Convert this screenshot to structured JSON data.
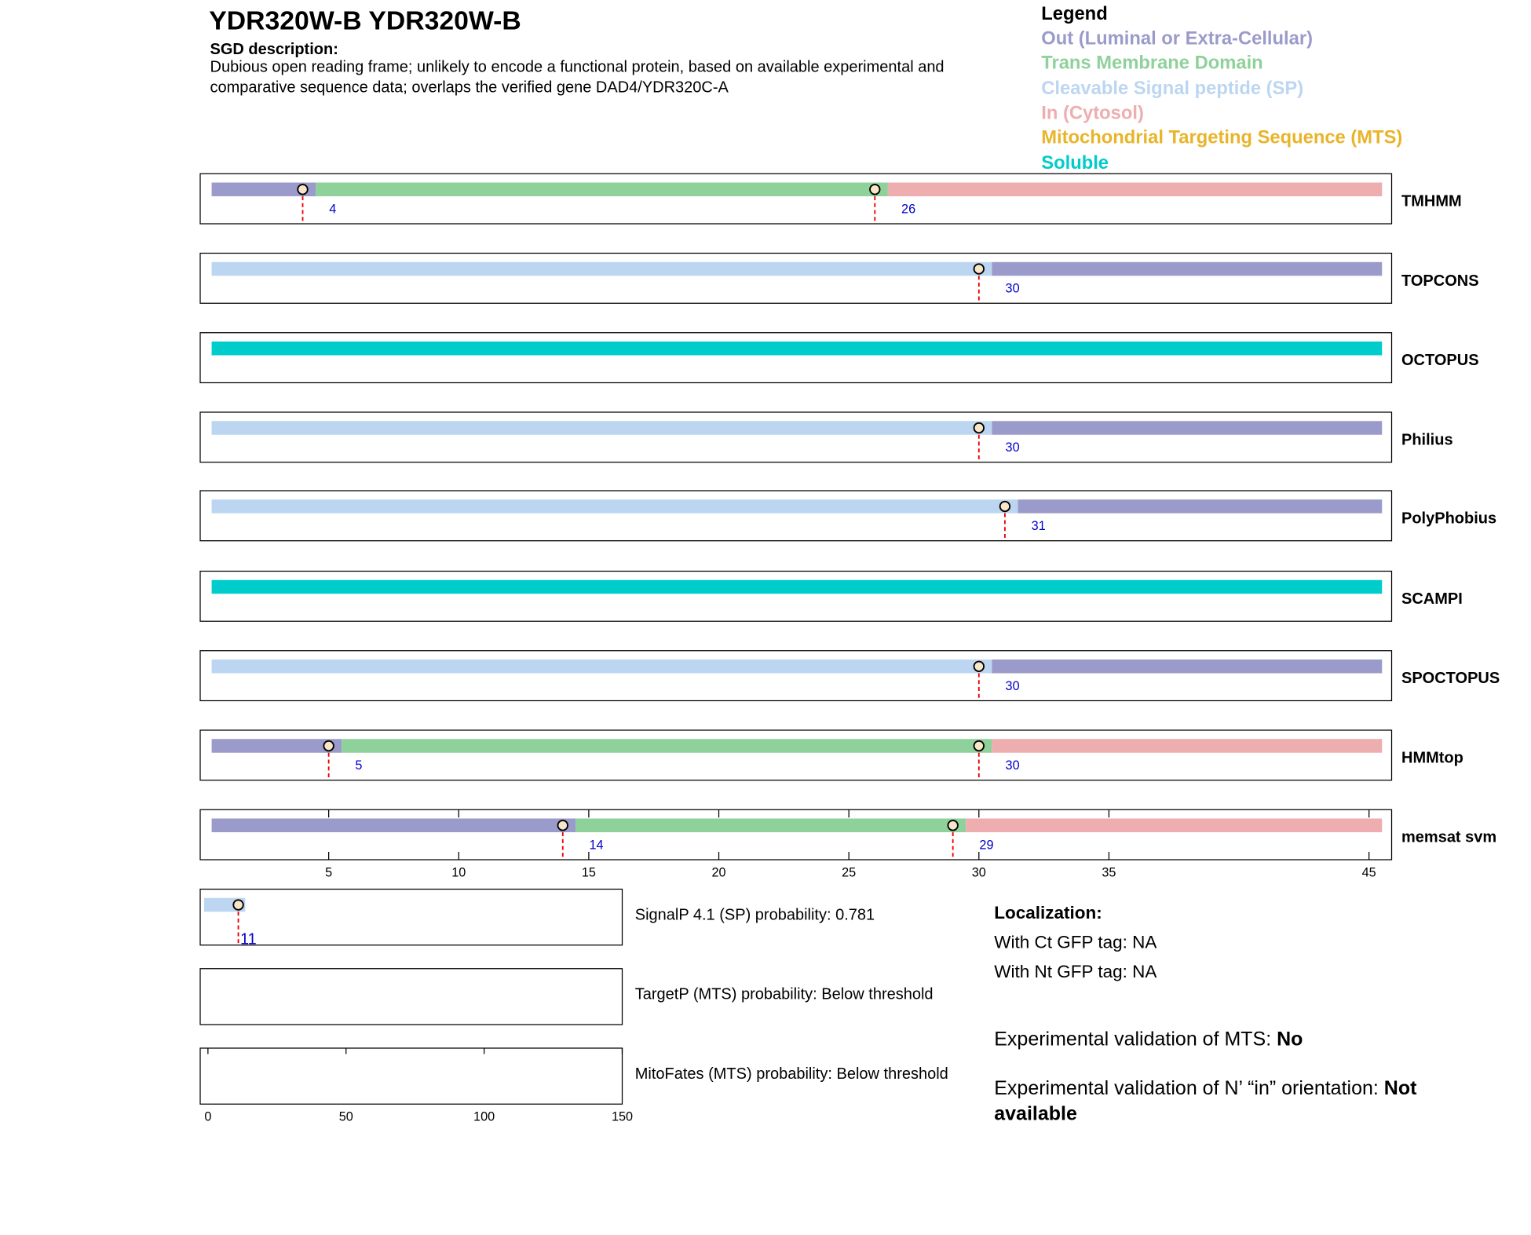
{
  "header": {
    "title": "YDR320W-B  YDR320W-B",
    "description_label": "SGD description:",
    "description": "Dubious open reading frame; unlikely to encode a functional protein, based on available experimental and comparative sequence data; overlaps the verified gene DAD4/YDR320C-A"
  },
  "legend": {
    "title": "Legend",
    "items": [
      {
        "label": "Out (Luminal or Extra-Cellular)",
        "color": "#9b9bcb"
      },
      {
        "label": "Trans Membrane Domain",
        "color": "#8fd19a"
      },
      {
        "label": "Cleavable Signal peptide (SP)",
        "color": "#bcd6f2"
      },
      {
        "label": "In (Cytosol)",
        "color": "#eeaeb0"
      },
      {
        "label": "Mitochondrial Targeting Sequence (MTS)",
        "color": "#e8b42a"
      },
      {
        "label": "Soluble",
        "color": "#00cccc"
      }
    ]
  },
  "topology": {
    "xlim": [
      0.06,
      45.87
    ],
    "xticks": [
      5,
      10,
      15,
      20,
      25,
      30,
      35,
      45
    ],
    "tracks": [
      {
        "name": "TMHMM",
        "segments": [
          {
            "start": 0.5,
            "end": 4.5,
            "class": 0
          },
          {
            "start": 4.5,
            "end": 26.5,
            "class": 1
          },
          {
            "start": 26.5,
            "end": 45.5,
            "class": 3
          }
        ],
        "markers": [
          4,
          26
        ]
      },
      {
        "name": "TOPCONS",
        "segments": [
          {
            "start": 0.5,
            "end": 30.5,
            "class": 2
          },
          {
            "start": 30.5,
            "end": 45.5,
            "class": 0
          }
        ],
        "markers": [
          30
        ]
      },
      {
        "name": "OCTOPUS",
        "segments": [
          {
            "start": 0.5,
            "end": 45.5,
            "class": 5
          }
        ],
        "markers": []
      },
      {
        "name": "Philius",
        "segments": [
          {
            "start": 0.5,
            "end": 30.5,
            "class": 2
          },
          {
            "start": 30.5,
            "end": 45.5,
            "class": 0
          }
        ],
        "markers": [
          30
        ]
      },
      {
        "name": "PolyPhobius",
        "segments": [
          {
            "start": 0.5,
            "end": 31.5,
            "class": 2
          },
          {
            "start": 31.5,
            "end": 45.5,
            "class": 0
          }
        ],
        "markers": [
          31
        ]
      },
      {
        "name": "SCAMPI",
        "segments": [
          {
            "start": 0.5,
            "end": 45.5,
            "class": 5
          }
        ],
        "markers": []
      },
      {
        "name": "SPOCTOPUS",
        "segments": [
          {
            "start": 0.5,
            "end": 30.5,
            "class": 2
          },
          {
            "start": 30.5,
            "end": 45.5,
            "class": 0
          }
        ],
        "markers": [
          30
        ]
      },
      {
        "name": "HMMtop",
        "segments": [
          {
            "start": 0.5,
            "end": 5.5,
            "class": 0
          },
          {
            "start": 5.5,
            "end": 30.5,
            "class": 1
          },
          {
            "start": 30.5,
            "end": 45.5,
            "class": 3
          }
        ],
        "markers": [
          5,
          30
        ]
      },
      {
        "name": "memsat svm",
        "segments": [
          {
            "start": 0.5,
            "end": 14.5,
            "class": 0
          },
          {
            "start": 14.5,
            "end": 29.5,
            "class": 1
          },
          {
            "start": 29.5,
            "end": 45.5,
            "class": 3
          }
        ],
        "markers": [
          14,
          29
        ]
      }
    ]
  },
  "predictions": {
    "xlim": [
      -2.8,
      150
    ],
    "xticks": [
      0,
      50,
      100,
      150
    ],
    "panels": [
      {
        "text": "SignalP 4.1 (SP) probability: 0.781",
        "segments": [
          {
            "start": -1.4,
            "end": 13.5,
            "class": 2
          }
        ],
        "markers": [
          11
        ]
      },
      {
        "text": "TargetP (MTS) probability: Below threshold",
        "segments": [],
        "markers": []
      },
      {
        "text": "MitoFates (MTS) probability: Below threshold",
        "segments": [],
        "markers": []
      }
    ]
  },
  "localization": {
    "title": "Localization:",
    "lines": [
      "With Ct GFP tag: NA",
      "With Nt GFP tag: NA"
    ],
    "mts_validation": {
      "label": "Experimental validation of MTS:",
      "value": "No"
    },
    "orientation_validation": {
      "label": "Experimental validation of N’ “in” orientation:",
      "value": "Not available"
    }
  }
}
